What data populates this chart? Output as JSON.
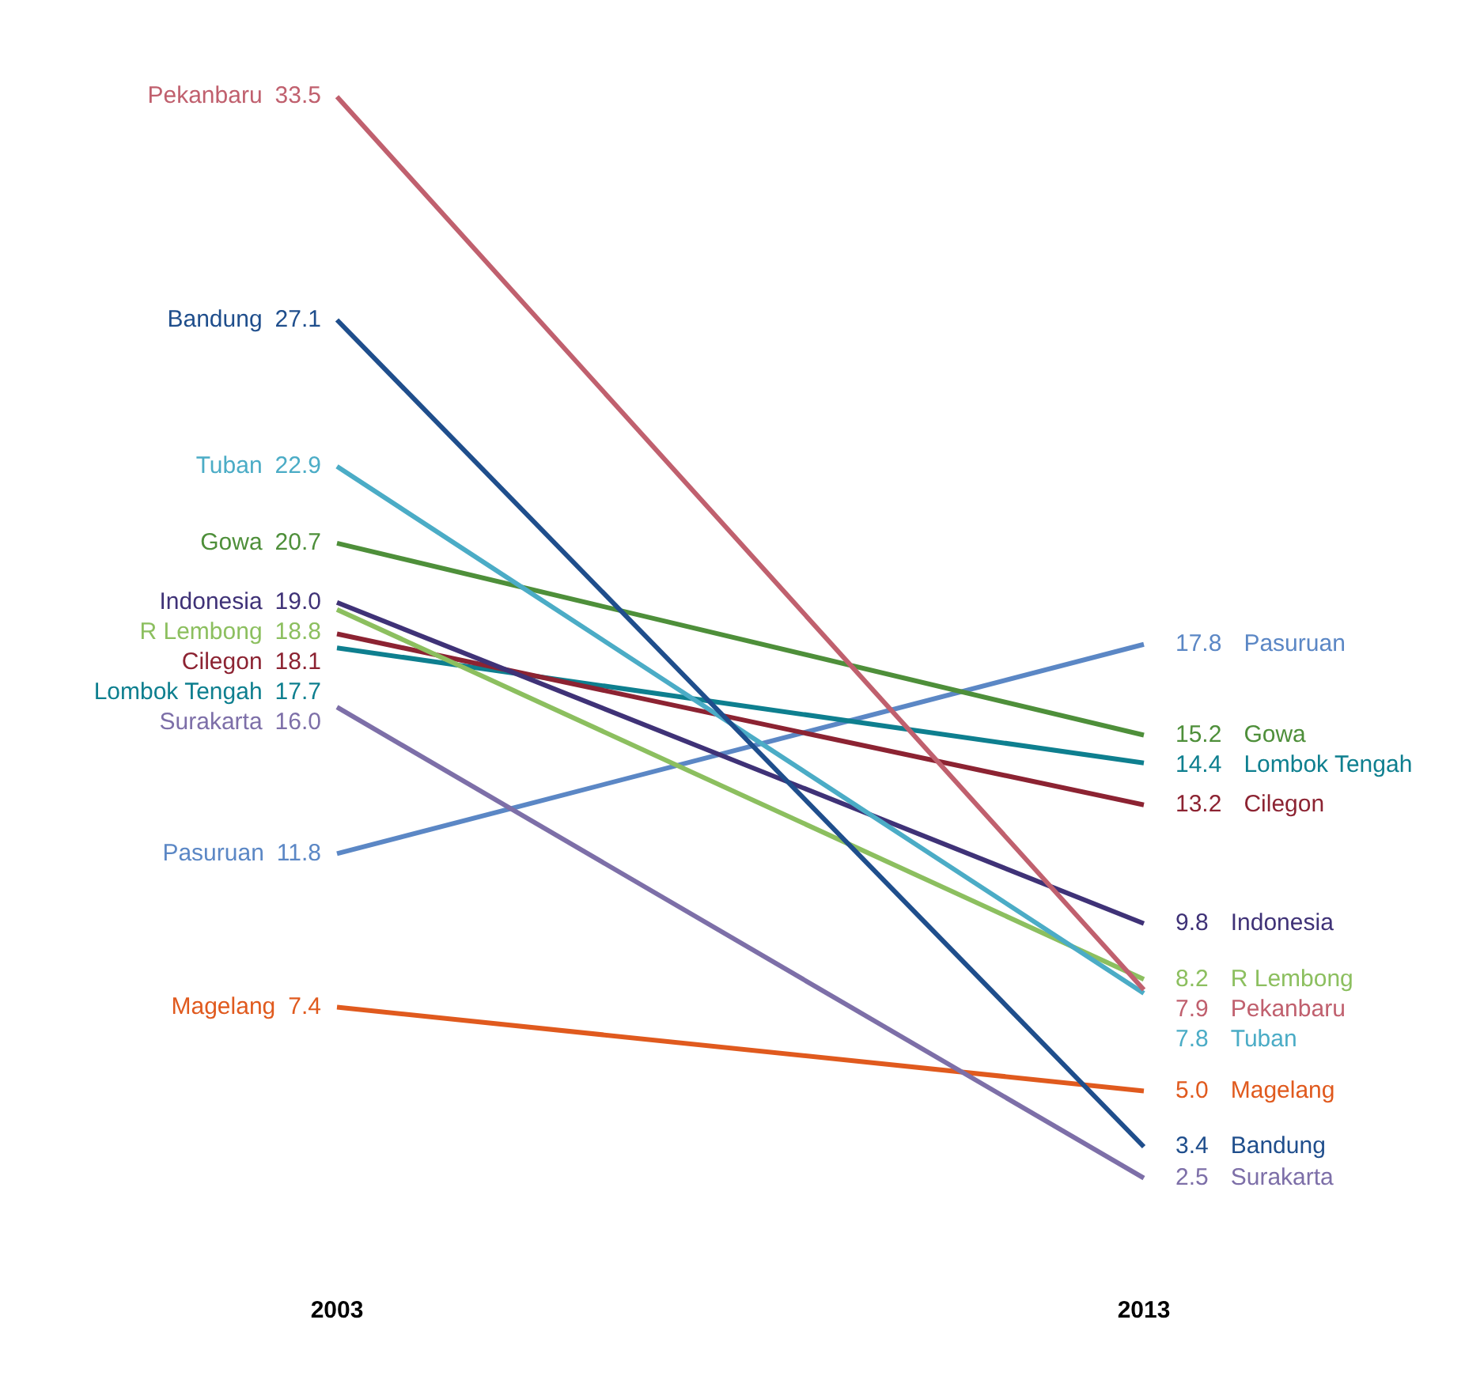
{
  "chart_data": {
    "type": "line",
    "categories": [
      "2003",
      "2013"
    ],
    "legend": false,
    "grid": false,
    "marker": "none",
    "series": [
      {
        "name": "Pekanbaru",
        "color": "#c0606e",
        "values": [
          33.5,
          7.9
        ],
        "value_labels": [
          "33.5",
          "7.9"
        ]
      },
      {
        "name": "Bandung",
        "color": "#1f4e8c",
        "values": [
          27.1,
          3.4
        ],
        "value_labels": [
          "27.1",
          "3.4"
        ]
      },
      {
        "name": "Tuban",
        "color": "#4bacc6",
        "values": [
          22.9,
          7.8
        ],
        "value_labels": [
          "22.9",
          "7.8"
        ]
      },
      {
        "name": "Gowa",
        "color": "#4e8f3a",
        "values": [
          20.7,
          15.2
        ],
        "value_labels": [
          "20.7",
          "15.2"
        ]
      },
      {
        "name": "Indonesia",
        "color": "#3f3277",
        "values": [
          19.0,
          9.8
        ],
        "value_labels": [
          "19.0",
          "9.8"
        ]
      },
      {
        "name": "R Lembong",
        "color": "#8cbf5f",
        "values": [
          18.8,
          8.2
        ],
        "value_labels": [
          "18.8",
          "8.2"
        ]
      },
      {
        "name": "Cilegon",
        "color": "#8c2332",
        "values": [
          18.1,
          13.2
        ],
        "value_labels": [
          "18.1",
          "13.2"
        ]
      },
      {
        "name": "Lombok Tengah",
        "color": "#0e7f8f",
        "values": [
          17.7,
          14.4
        ],
        "value_labels": [
          "17.7",
          "14.4"
        ]
      },
      {
        "name": "Surakarta",
        "color": "#7d6fa8",
        "values": [
          16.0,
          2.5
        ],
        "value_labels": [
          "16.0",
          "2.5"
        ]
      },
      {
        "name": "Pasuruan",
        "color": "#5b87c5",
        "values": [
          11.8,
          17.8
        ],
        "value_labels": [
          "11.8",
          "17.8"
        ]
      },
      {
        "name": "Magelang",
        "color": "#e05a1e",
        "values": [
          7.4,
          5.0
        ],
        "value_labels": [
          "7.4",
          "5.0"
        ]
      }
    ]
  }
}
